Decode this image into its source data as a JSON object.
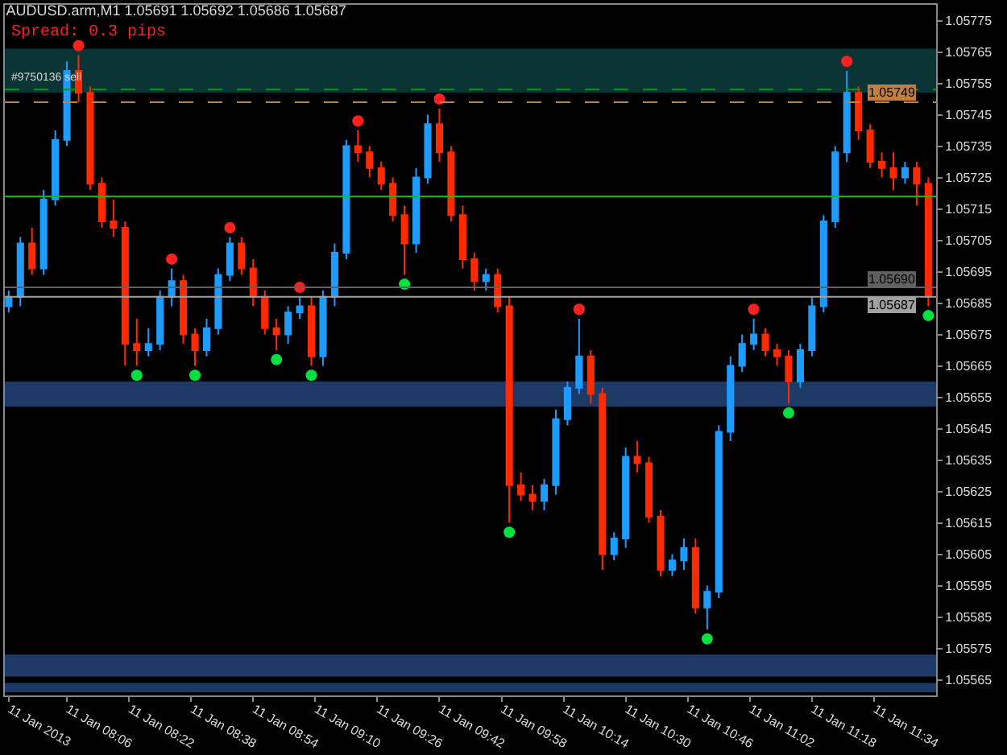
{
  "chart_data": {
    "type": "candlestick",
    "title": "AUDUSD.arm,M1 1.05691 1.05692 1.05686 1.05687",
    "annotations": [
      "Spread: 0.3 pips",
      {
        "text": "#9750136 sell",
        "x": "2013-01-11T07:51",
        "y": 1.05753
      }
    ],
    "x": [
      "2013-01-11T07:51",
      "2013-01-11T07:54",
      "2013-01-11T07:57",
      "2013-01-11T08:00",
      "2013-01-11T08:03",
      "2013-01-11T08:06",
      "2013-01-11T08:09",
      "2013-01-11T08:12",
      "2013-01-11T08:15",
      "2013-01-11T08:18",
      "2013-01-11T08:21",
      "2013-01-11T08:24",
      "2013-01-11T08:27",
      "2013-01-11T08:30",
      "2013-01-11T08:33",
      "2013-01-11T08:36",
      "2013-01-11T08:39",
      "2013-01-11T08:42",
      "2013-01-11T08:45",
      "2013-01-11T08:48",
      "2013-01-11T08:51",
      "2013-01-11T08:54",
      "2013-01-11T08:57",
      "2013-01-11T09:00",
      "2013-01-11T09:03",
      "2013-01-11T09:06",
      "2013-01-11T09:09",
      "2013-01-11T09:12",
      "2013-01-11T09:15",
      "2013-01-11T09:18",
      "2013-01-11T09:21",
      "2013-01-11T09:24",
      "2013-01-11T09:27",
      "2013-01-11T09:30",
      "2013-01-11T09:33",
      "2013-01-11T09:36",
      "2013-01-11T09:39",
      "2013-01-11T09:42",
      "2013-01-11T09:45",
      "2013-01-11T09:48",
      "2013-01-11T09:51",
      "2013-01-11T09:54",
      "2013-01-11T09:57",
      "2013-01-11T10:00",
      "2013-01-11T10:03",
      "2013-01-11T10:06",
      "2013-01-11T10:09",
      "2013-01-11T10:12",
      "2013-01-11T10:15",
      "2013-01-11T10:18",
      "2013-01-11T10:21",
      "2013-01-11T10:24",
      "2013-01-11T10:27",
      "2013-01-11T10:30",
      "2013-01-11T10:33",
      "2013-01-11T10:36",
      "2013-01-11T10:39",
      "2013-01-11T10:42",
      "2013-01-11T10:45",
      "2013-01-11T10:48",
      "2013-01-11T10:51",
      "2013-01-11T10:54",
      "2013-01-11T10:57",
      "2013-01-11T11:00",
      "2013-01-11T11:03",
      "2013-01-11T11:06",
      "2013-01-11T11:09",
      "2013-01-11T11:12",
      "2013-01-11T11:15",
      "2013-01-11T11:18",
      "2013-01-11T11:21",
      "2013-01-11T11:24",
      "2013-01-11T11:27",
      "2013-01-11T11:30",
      "2013-01-11T11:33",
      "2013-01-11T11:36",
      "2013-01-11T11:39",
      "2013-01-11T11:42",
      "2013-01-11T11:45",
      "2013-01-11T11:48"
    ],
    "ohlc": [
      [
        1.05684,
        1.05689,
        1.05682,
        1.05687
      ],
      [
        1.05687,
        1.05706,
        1.05684,
        1.05704
      ],
      [
        1.05704,
        1.05709,
        1.05694,
        1.05696
      ],
      [
        1.05696,
        1.05721,
        1.05694,
        1.05718
      ],
      [
        1.05718,
        1.0574,
        1.05716,
        1.05737
      ],
      [
        1.05737,
        1.05762,
        1.05735,
        1.05759
      ],
      [
        1.05759,
        1.05764,
        1.05749,
        1.05752
      ],
      [
        1.05752,
        1.05754,
        1.05721,
        1.05723
      ],
      [
        1.05723,
        1.05725,
        1.05709,
        1.05711
      ],
      [
        1.05711,
        1.05718,
        1.05706,
        1.05709
      ],
      [
        1.05709,
        1.05711,
        1.05665,
        1.05672
      ],
      [
        1.05672,
        1.0568,
        1.05665,
        1.0567
      ],
      [
        1.0567,
        1.05677,
        1.05668,
        1.05672
      ],
      [
        1.05672,
        1.05689,
        1.0567,
        1.05687
      ],
      [
        1.05687,
        1.05696,
        1.05684,
        1.05692
      ],
      [
        1.05692,
        1.05694,
        1.05672,
        1.05675
      ],
      [
        1.05675,
        1.05677,
        1.05665,
        1.0567
      ],
      [
        1.0567,
        1.0568,
        1.05668,
        1.05677
      ],
      [
        1.05677,
        1.05696,
        1.05675,
        1.05694
      ],
      [
        1.05694,
        1.05706,
        1.05692,
        1.05704
      ],
      [
        1.05704,
        1.05706,
        1.05694,
        1.05696
      ],
      [
        1.05696,
        1.05699,
        1.05684,
        1.05687
      ],
      [
        1.05687,
        1.05689,
        1.05675,
        1.05677
      ],
      [
        1.05677,
        1.0568,
        1.0567,
        1.05675
      ],
      [
        1.05675,
        1.05684,
        1.05672,
        1.05682
      ],
      [
        1.05682,
        1.05687,
        1.0568,
        1.05684
      ],
      [
        1.05684,
        1.05687,
        1.05665,
        1.05668
      ],
      [
        1.05668,
        1.05689,
        1.05665,
        1.05687
      ],
      [
        1.05687,
        1.05704,
        1.05684,
        1.05701
      ],
      [
        1.05701,
        1.05737,
        1.05699,
        1.05735
      ],
      [
        1.05735,
        1.0574,
        1.0573,
        1.05733
      ],
      [
        1.05733,
        1.05735,
        1.05725,
        1.05728
      ],
      [
        1.05728,
        1.0573,
        1.05721,
        1.05723
      ],
      [
        1.05723,
        1.05725,
        1.05711,
        1.05713
      ],
      [
        1.05713,
        1.05716,
        1.05694,
        1.05704
      ],
      [
        1.05704,
        1.05728,
        1.05701,
        1.05725
      ],
      [
        1.05725,
        1.05745,
        1.05723,
        1.05742
      ],
      [
        1.05742,
        1.05747,
        1.0573,
        1.05733
      ],
      [
        1.05733,
        1.05735,
        1.05711,
        1.05713
      ],
      [
        1.05713,
        1.05716,
        1.05696,
        1.05699
      ],
      [
        1.05699,
        1.05701,
        1.05689,
        1.05692
      ],
      [
        1.05692,
        1.05696,
        1.05689,
        1.05694
      ],
      [
        1.05694,
        1.05696,
        1.05682,
        1.05684
      ],
      [
        1.05684,
        1.05687,
        1.05615,
        1.05627
      ],
      [
        1.05627,
        1.05631,
        1.05622,
        1.05624
      ],
      [
        1.05624,
        1.05627,
        1.05619,
        1.05622
      ],
      [
        1.05622,
        1.05629,
        1.05619,
        1.05627
      ],
      [
        1.05627,
        1.05651,
        1.05624,
        1.05648
      ],
      [
        1.05648,
        1.0566,
        1.05646,
        1.05658
      ],
      [
        1.05658,
        1.0568,
        1.05656,
        1.05668
      ],
      [
        1.05668,
        1.0567,
        1.05653,
        1.05656
      ],
      [
        1.05656,
        1.05658,
        1.056,
        1.05605
      ],
      [
        1.05605,
        1.05612,
        1.05603,
        1.0561
      ],
      [
        1.0561,
        1.05639,
        1.05607,
        1.05636
      ],
      [
        1.05636,
        1.05641,
        1.05631,
        1.05634
      ],
      [
        1.05634,
        1.05636,
        1.05615,
        1.05617
      ],
      [
        1.05617,
        1.05619,
        1.05598,
        1.056
      ],
      [
        1.056,
        1.05605,
        1.05598,
        1.05603
      ],
      [
        1.05603,
        1.0561,
        1.056,
        1.05607
      ],
      [
        1.05607,
        1.0561,
        1.05586,
        1.05588
      ],
      [
        1.05588,
        1.05595,
        1.05581,
        1.05593
      ],
      [
        1.05593,
        1.05646,
        1.05591,
        1.05644
      ],
      [
        1.05644,
        1.05668,
        1.05641,
        1.05665
      ],
      [
        1.05665,
        1.05675,
        1.05663,
        1.05672
      ],
      [
        1.05672,
        1.0568,
        1.0567,
        1.05675
      ],
      [
        1.05675,
        1.05677,
        1.05668,
        1.0567
      ],
      [
        1.0567,
        1.05672,
        1.05665,
        1.05668
      ],
      [
        1.05668,
        1.0567,
        1.05653,
        1.0566
      ],
      [
        1.0566,
        1.05672,
        1.05658,
        1.0567
      ],
      [
        1.0567,
        1.05687,
        1.05668,
        1.05684
      ],
      [
        1.05684,
        1.05713,
        1.05682,
        1.05711
      ],
      [
        1.05711,
        1.05735,
        1.05709,
        1.05733
      ],
      [
        1.05733,
        1.05759,
        1.0573,
        1.05752
      ],
      [
        1.05752,
        1.05754,
        1.05737,
        1.0574
      ],
      [
        1.0574,
        1.05742,
        1.05728,
        1.0573
      ],
      [
        1.0573,
        1.05733,
        1.05725,
        1.05728
      ],
      [
        1.05728,
        1.05733,
        1.05721,
        1.05725
      ],
      [
        1.05725,
        1.0573,
        1.05723,
        1.05728
      ],
      [
        1.05728,
        1.0573,
        1.05716,
        1.05723
      ],
      [
        1.05723,
        1.05725,
        1.05684,
        1.05687
      ]
    ],
    "series": [
      {
        "type": "scatter",
        "color": "#ff2020",
        "x": [
          "2013-01-11T08:09",
          "2013-01-11T08:33",
          "2013-01-11T08:48",
          "2013-01-11T09:06",
          "2013-01-11T09:21",
          "2013-01-11T09:42",
          "2013-01-11T10:18",
          "2013-01-11T11:03",
          "2013-01-11T11:27"
        ],
        "values": [
          1.05767,
          1.05699,
          1.05709,
          1.0569,
          1.05743,
          1.0575,
          1.05683,
          1.05683,
          1.05762
        ]
      },
      {
        "type": "scatter",
        "color": "#00e040",
        "x": [
          "2013-01-11T08:24",
          "2013-01-11T08:39",
          "2013-01-11T09:00",
          "2013-01-11T09:09",
          "2013-01-11T09:33",
          "2013-01-11T10:00",
          "2013-01-11T10:51",
          "2013-01-11T11:12",
          "2013-01-11T11:48"
        ],
        "values": [
          1.05662,
          1.05662,
          1.05667,
          1.05662,
          1.05691,
          1.05612,
          1.05578,
          1.0565,
          1.05681
        ]
      }
    ],
    "marker": "circle",
    "ref_lines": [
      {
        "axis": "y",
        "value": 1.05719,
        "color": "#00c000",
        "line_style": "solid"
      },
      {
        "axis": "y",
        "value": 1.05753,
        "color": "#00a000",
        "line_style": "dashed"
      },
      {
        "axis": "y",
        "value": 1.05749,
        "label": "1.05749",
        "color": "#c08040",
        "line_style": "dashed"
      },
      {
        "axis": "y",
        "value": 1.0569,
        "label": "1.05690",
        "color": "#606060",
        "line_style": "solid"
      },
      {
        "axis": "y",
        "value": 1.05687,
        "label": "1.05687",
        "color": "#a0a0a0",
        "line_style": "solid"
      }
    ],
    "bands": [
      {
        "axis": "y",
        "from": 1.05752,
        "to": 1.05766,
        "color": "#0b3434"
      },
      {
        "axis": "y",
        "from": 1.05652,
        "to": 1.0566,
        "color": "#1d3a66"
      },
      {
        "axis": "y",
        "from": 1.05566,
        "to": 1.05573,
        "color": "#1d3a66"
      },
      {
        "axis": "y",
        "from": 1.05561,
        "to": 1.05564,
        "color": "#1d3a66"
      }
    ],
    "xlim": [
      "2013-01-11T07:50",
      "2013-01-11T11:50"
    ],
    "xticks": [
      {
        "value": "2013-01-11T07:51",
        "label": "11 Jan 2013"
      },
      {
        "value": "2013-01-11T08:06",
        "label": "11 Jan 08:06"
      },
      {
        "value": "2013-01-11T08:22",
        "label": "11 Jan 08:22"
      },
      {
        "value": "2013-01-11T08:38",
        "label": "11 Jan 08:38"
      },
      {
        "value": "2013-01-11T08:54",
        "label": "11 Jan 08:54"
      },
      {
        "value": "2013-01-11T09:10",
        "label": "11 Jan 09:10"
      },
      {
        "value": "2013-01-11T09:26",
        "label": "11 Jan 09:26"
      },
      {
        "value": "2013-01-11T09:42",
        "label": "11 Jan 09:42"
      },
      {
        "value": "2013-01-11T09:58",
        "label": "11 Jan 09:58"
      },
      {
        "value": "2013-01-11T10:14",
        "label": "11 Jan 10:14"
      },
      {
        "value": "2013-01-11T10:30",
        "label": "11 Jan 10:30"
      },
      {
        "value": "2013-01-11T10:46",
        "label": "11 Jan 10:46"
      },
      {
        "value": "2013-01-11T11:02",
        "label": "11 Jan 11:02"
      },
      {
        "value": "2013-01-11T11:18",
        "label": "11 Jan 11:18"
      },
      {
        "value": "2013-01-11T11:34",
        "label": "11 Jan 11:34"
      }
    ],
    "ylim": [
      1.0556,
      1.0578
    ],
    "yticks": [
      1.05775,
      1.05765,
      1.05755,
      1.05745,
      1.05735,
      1.05725,
      1.05715,
      1.05705,
      1.05695,
      1.05685,
      1.05675,
      1.05665,
      1.05655,
      1.05645,
      1.05635,
      1.05625,
      1.05615,
      1.05605,
      1.05595,
      1.05585,
      1.05575,
      1.05565
    ],
    "grid": false
  }
}
